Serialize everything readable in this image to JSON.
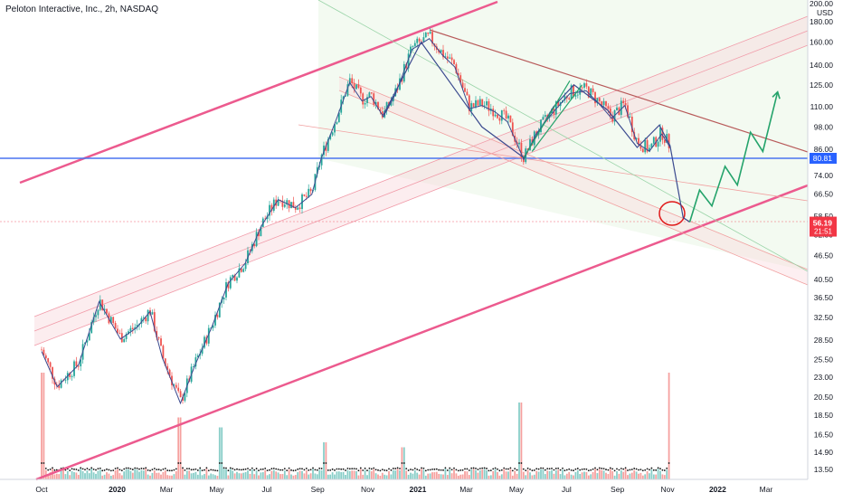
{
  "chart_data": {
    "type": "candlestick",
    "title": "Peloton Interactive, Inc., 2h, NASDAQ",
    "currency": "USD",
    "y_scale": "log",
    "ylim": [
      12.5,
      200
    ],
    "y_ticks": [
      "200.00",
      "180.00",
      "160.00",
      "140.00",
      "125.00",
      "110.00",
      "98.00",
      "86.00",
      "74.00",
      "66.50",
      "58.50",
      "52.50",
      "46.50",
      "40.50",
      "36.50",
      "32.50",
      "28.50",
      "25.50",
      "23.00",
      "20.50",
      "18.50",
      "16.50",
      "14.90",
      "13.50"
    ],
    "x_ticks": [
      "Oct",
      "2020",
      "Mar",
      "May",
      "Jul",
      "Sep",
      "Nov",
      "2021",
      "Mar",
      "May",
      "Jul",
      "Sep",
      "Nov",
      "2022",
      "Mar"
    ],
    "last_price": "56.19",
    "countdown": "21:51",
    "level_label": "80.81",
    "price_path": [
      {
        "x": "2019-10-01",
        "y": 27
      },
      {
        "x": "2019-10-20",
        "y": 22
      },
      {
        "x": "2019-11-15",
        "y": 25
      },
      {
        "x": "2019-12-10",
        "y": 36
      },
      {
        "x": "2020-01-05",
        "y": 29
      },
      {
        "x": "2020-01-25",
        "y": 31
      },
      {
        "x": "2020-02-10",
        "y": 34
      },
      {
        "x": "2020-02-25",
        "y": 26
      },
      {
        "x": "2020-03-18",
        "y": 20
      },
      {
        "x": "2020-04-05",
        "y": 25
      },
      {
        "x": "2020-04-25",
        "y": 31
      },
      {
        "x": "2020-05-15",
        "y": 40
      },
      {
        "x": "2020-06-05",
        "y": 45
      },
      {
        "x": "2020-06-25",
        "y": 56
      },
      {
        "x": "2020-07-15",
        "y": 65
      },
      {
        "x": "2020-08-05",
        "y": 62
      },
      {
        "x": "2020-08-25",
        "y": 67
      },
      {
        "x": "2020-09-05",
        "y": 82
      },
      {
        "x": "2020-09-25",
        "y": 105
      },
      {
        "x": "2020-10-10",
        "y": 128
      },
      {
        "x": "2020-10-25",
        "y": 115
      },
      {
        "x": "2020-11-05",
        "y": 118
      },
      {
        "x": "2020-11-20",
        "y": 105
      },
      {
        "x": "2020-12-05",
        "y": 120
      },
      {
        "x": "2020-12-25",
        "y": 155
      },
      {
        "x": "2021-01-15",
        "y": 165
      },
      {
        "x": "2021-01-31",
        "y": 150
      },
      {
        "x": "2021-02-15",
        "y": 140
      },
      {
        "x": "2021-03-05",
        "y": 110
      },
      {
        "x": "2021-03-20",
        "y": 112
      },
      {
        "x": "2021-04-05",
        "y": 108
      },
      {
        "x": "2021-04-20",
        "y": 102
      },
      {
        "x": "2021-05-10",
        "y": 82
      },
      {
        "x": "2021-05-25",
        "y": 95
      },
      {
        "x": "2021-06-15",
        "y": 108
      },
      {
        "x": "2021-07-05",
        "y": 120
      },
      {
        "x": "2021-07-25",
        "y": 122
      },
      {
        "x": "2021-08-10",
        "y": 113
      },
      {
        "x": "2021-08-25",
        "y": 104
      },
      {
        "x": "2021-09-10",
        "y": 112
      },
      {
        "x": "2021-09-25",
        "y": 90
      },
      {
        "x": "2021-10-10",
        "y": 86
      },
      {
        "x": "2021-10-25",
        "y": 95
      },
      {
        "x": "2021-11-04",
        "y": 88
      }
    ],
    "forecast_path": [
      {
        "x": "2021-11-04",
        "y": 88
      },
      {
        "x": "2021-11-20",
        "y": 58
      },
      {
        "x": "2021-11-28",
        "y": 56.5
      },
      {
        "x": "2021-12-10",
        "y": 68
      },
      {
        "x": "2021-12-25",
        "y": 62
      },
      {
        "x": "2022-01-10",
        "y": 78
      },
      {
        "x": "2022-01-25",
        "y": 70
      },
      {
        "x": "2022-02-10",
        "y": 95
      },
      {
        "x": "2022-02-25",
        "y": 85
      },
      {
        "x": "2022-03-15",
        "y": 120
      }
    ],
    "volume_spikes": [
      {
        "x": "2019-10-01",
        "v": 1.0
      },
      {
        "x": "2020-03-18",
        "v": 0.55
      },
      {
        "x": "2020-05-05",
        "v": 0.45
      },
      {
        "x": "2020-09-10",
        "v": 0.3
      },
      {
        "x": "2020-12-15",
        "v": 0.25
      },
      {
        "x": "2021-05-07",
        "v": 0.7
      },
      {
        "x": "2021-11-05",
        "v": 1.0
      }
    ]
  },
  "colors": {
    "up": "#26a69a",
    "down": "#ef5350",
    "channel": "#ec5a8e",
    "horizontal": "#4a74f0",
    "ma": "#3b4a8f",
    "forecast": "#24a36b",
    "price_label": "#f23645",
    "level_label": "#2962ff"
  }
}
